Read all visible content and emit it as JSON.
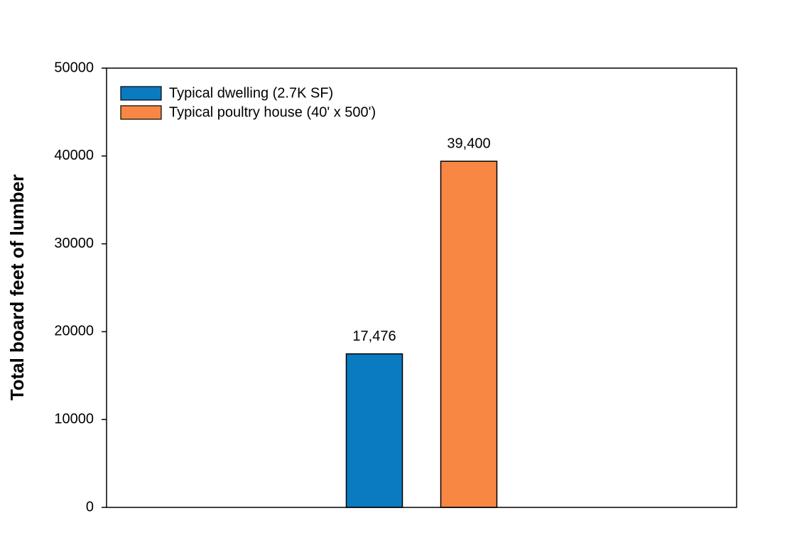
{
  "chart_data": {
    "type": "bar",
    "ylabel": "Total board feet of lumber",
    "categories": [
      null
    ],
    "series": [
      {
        "name": "Typical dwelling (2.7K SF)",
        "color": "#0a7bc1",
        "values": [
          17476
        ],
        "value_labels": [
          "17,476"
        ]
      },
      {
        "name": "Typical poultry house (40' x 500')",
        "color": "#f88743",
        "values": [
          39400
        ],
        "value_labels": [
          "39,400"
        ]
      }
    ],
    "ylim": [
      0,
      50000
    ],
    "yticks": [
      0,
      10000,
      20000,
      30000,
      40000,
      50000
    ],
    "grid": false,
    "legend": "upper-left"
  }
}
